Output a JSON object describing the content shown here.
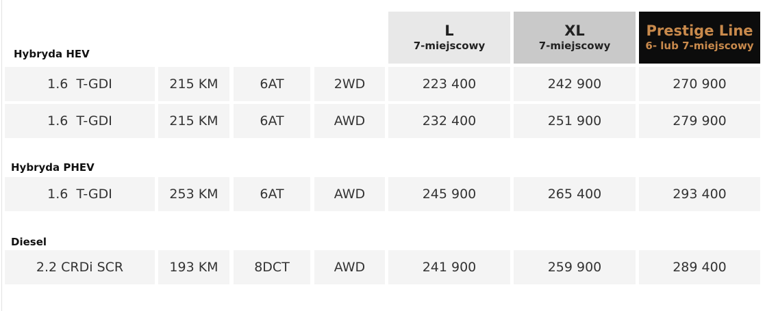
{
  "header": {
    "columns": [
      {
        "name": "L",
        "seats": "7-miejscowy"
      },
      {
        "name": "XL",
        "seats": "7-miejscowy"
      },
      {
        "name": "Prestige Line",
        "seats": "6- lub 7-miejscowy"
      }
    ]
  },
  "sections": [
    {
      "title": "Hybryda HEV",
      "rows": [
        [
          "1.6  T-GDI",
          "215 KM",
          "6AT",
          "2WD",
          "223 400",
          "242 900",
          "270 900"
        ],
        [
          "1.6  T-GDI",
          "215 KM",
          "6AT",
          "AWD",
          "232 400",
          "251 900",
          "279 900"
        ]
      ]
    },
    {
      "title": "Hybryda PHEV",
      "rows": [
        [
          "1.6  T-GDI",
          "253 KM",
          "6AT",
          "AWD",
          "245 900",
          "265 400",
          "293 400"
        ]
      ]
    },
    {
      "title": "Diesel",
      "rows": [
        [
          "2.2 CRDi SCR",
          "193 KM",
          "8DCT",
          "AWD",
          "241 900",
          "259 900",
          "289 400"
        ]
      ]
    }
  ]
}
